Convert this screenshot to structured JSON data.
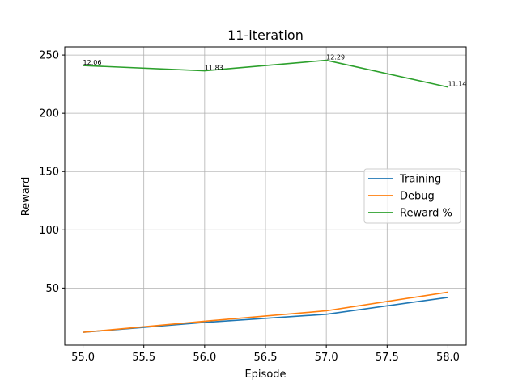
{
  "chart_data": {
    "type": "line",
    "title": "11-iteration",
    "xlabel": "Episode",
    "ylabel": "Reward",
    "x": [
      55.0,
      56.0,
      57.0,
      58.0
    ],
    "xlim": [
      54.85,
      58.15
    ],
    "ylim": [
      1,
      257
    ],
    "xticks": [
      "55.0",
      "55.5",
      "56.0",
      "56.5",
      "57.0",
      "57.5",
      "58.0"
    ],
    "yticks": [
      "50",
      "100",
      "150",
      "200",
      "250"
    ],
    "grid": true,
    "legend_position": "center-right",
    "series": [
      {
        "name": "Training",
        "color": "#1f77b4",
        "values": [
          12,
          20.5,
          27.5,
          42
        ]
      },
      {
        "name": "Debug",
        "color": "#ff7f0e",
        "values": [
          12,
          21.5,
          30.5,
          46.5
        ]
      },
      {
        "name": "Reward %",
        "color": "#2ca02c",
        "values": [
          241,
          236.5,
          245.5,
          222.5
        ],
        "point_labels": [
          "12.06",
          "11.83",
          "12.29",
          "11.14"
        ]
      }
    ]
  }
}
